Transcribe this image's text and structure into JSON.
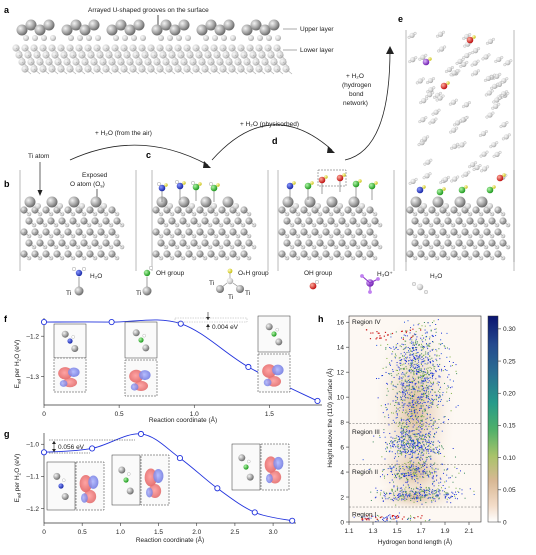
{
  "panel_labels": {
    "a": "a",
    "b": "b",
    "c": "c",
    "d": "d",
    "e": "e",
    "f": "f",
    "g": "g",
    "h": "h"
  },
  "panel_a": {
    "title": "Arrayed U-shaped grooves on the surface",
    "upper_layer": "Upper layer",
    "lower_layer": "Lower layer"
  },
  "panels_bcde": {
    "ti_atom": "Ti atom",
    "exposed_o_line1": "Exposed",
    "exposed_o_line2": "O atom (O",
    "exposed_o_sub": "s",
    "exposed_o_end": ")",
    "arrow_b_c": "+ H₂O (from the air)",
    "arrow_c_d": "+ H₂O (physisorbed)",
    "arrow_d_e_line1": "+ H₂O",
    "arrow_d_e_line2": "(hydrogen",
    "arrow_d_e_line3": "bond",
    "arrow_d_e_line4": "network)"
  },
  "legend": {
    "h2o_on_ti": "H₂O",
    "ti_label": "Ti",
    "oh_group_1": "OH group",
    "osh_group": "OₛH group",
    "oh_group_2": "OH group",
    "h3o_plus": "H₃O⁺",
    "h2o": "H₂O",
    "colors": {
      "ti": "#9a9a9a",
      "o_blue": "#2b3fc8",
      "o_green": "#3cc43c",
      "h_yellow": "#e8e030",
      "o_red": "#e02020",
      "o_purple": "#9a3fd0"
    }
  },
  "chart_data": [
    {
      "panel": "f",
      "type": "line",
      "ylabel": "E_ad per H₂O (eV)",
      "xlabel": "Reaction coordinate (Å)",
      "xlim": [
        0,
        1.85
      ],
      "ylim": [
        -1.37,
        -1.155
      ],
      "xticks": [
        0,
        0.5,
        1.0,
        1.5
      ],
      "xtick_labels": [
        "0",
        "0.5",
        "1.0",
        "1.5"
      ],
      "yticks": [
        -1.2,
        -1.3
      ],
      "ytick_labels": [
        "–1.2",
        "–1.3"
      ],
      "points": [
        {
          "x": 0,
          "y": -1.165
        },
        {
          "x": 0.45,
          "y": -1.165
        },
        {
          "x": 0.91,
          "y": -1.169
        },
        {
          "x": 1.36,
          "y": -1.276
        },
        {
          "x": 1.82,
          "y": -1.36
        }
      ],
      "annotation": "0.004 eV",
      "line_color": "#2233dd"
    },
    {
      "panel": "g",
      "type": "line",
      "ylabel": "E_ad per H₂O (eV)",
      "xlabel": "Reaction coordinate (Å)",
      "xlim": [
        0,
        3.3
      ],
      "ylim": [
        -1.245,
        -0.965
      ],
      "xticks": [
        0,
        0.5,
        1.0,
        1.5,
        2.0,
        2.5,
        3.0
      ],
      "xtick_labels": [
        "0",
        "0.5",
        "1.0",
        "1.5",
        "2.0",
        "2.5",
        "3.0"
      ],
      "yticks": [
        -1.0,
        -1.1,
        -1.2
      ],
      "ytick_labels": [
        "–1.0",
        "–1.1",
        "–1.2"
      ],
      "points": [
        {
          "x": 0,
          "y": -1.025
        },
        {
          "x": 0.63,
          "y": -1.013
        },
        {
          "x": 1.27,
          "y": -0.968
        },
        {
          "x": 1.78,
          "y": -1.043
        },
        {
          "x": 2.27,
          "y": -1.137
        },
        {
          "x": 2.76,
          "y": -1.212
        },
        {
          "x": 3.25,
          "y": -1.238
        }
      ],
      "annotation": "0.056 eV",
      "line_color": "#2233dd"
    },
    {
      "panel": "h",
      "type": "heatmap",
      "xlabel": "Hydrogen bond length (Å)",
      "ylabel": "Height above the (110) surface (Å)",
      "xlim": [
        1.1,
        2.2
      ],
      "ylim": [
        0,
        16.5
      ],
      "xticks": [
        1.1,
        1.3,
        1.5,
        1.7,
        1.9,
        2.1
      ],
      "xtick_labels": [
        "1.1",
        "1.3",
        "1.5",
        "1.7",
        "1.9",
        "2.1"
      ],
      "yticks": [
        0,
        2,
        4,
        6,
        8,
        10,
        12,
        14,
        16
      ],
      "ytick_labels": [
        "0",
        "2",
        "4",
        "6",
        "8",
        "10",
        "12",
        "14",
        "16"
      ],
      "regions": [
        {
          "name": "Region IV",
          "y": 16.0
        },
        {
          "name": "Region III",
          "y": 7.2
        },
        {
          "name": "Region II",
          "y": 4.0
        },
        {
          "name": "Region I",
          "y": 0.6
        }
      ],
      "dashed_lines_y": [
        1.2,
        4.6,
        7.9
      ],
      "colorbar": {
        "min": 0,
        "max": 0.32,
        "ticks": [
          0,
          0.05,
          0.1,
          0.15,
          0.2,
          0.25,
          0.3
        ],
        "tick_labels": [
          "0",
          "0.05",
          "0.10",
          "0.15",
          "0.20",
          "0.25",
          "0.30"
        ]
      }
    }
  ]
}
